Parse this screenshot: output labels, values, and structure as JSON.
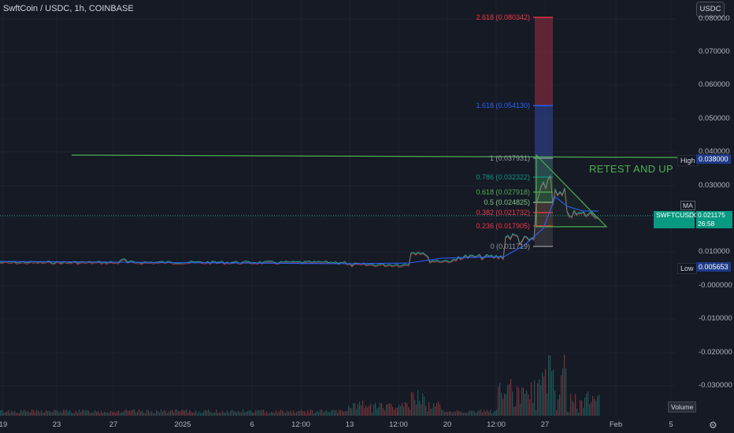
{
  "header": {
    "title": "SwftCoin / USDC, 1h, COINBASE",
    "currency_button": "USDC"
  },
  "y_axis": {
    "ticks": [
      "0.080000",
      "0.070000",
      "0.060000",
      "0.050000",
      "0.040000",
      "0.030000",
      "0.020000",
      "0.010000",
      "-0.000000",
      "-0.010000",
      "-0.020000",
      "-0.030000"
    ]
  },
  "x_axis": {
    "ticks": [
      "19",
      "23",
      "27",
      "2025",
      "6",
      "12:00",
      "13",
      "12:00",
      "20",
      "12:00",
      "27",
      "Feb",
      "5"
    ]
  },
  "fibonacci": [
    {
      "label": "2.618 (0.080342)",
      "color": "#f23645"
    },
    {
      "label": "1.618 (0.054130)",
      "color": "#2962ff"
    },
    {
      "label": "1 (0.037931)",
      "color": "#9598a1"
    },
    {
      "label": "0.786 (0.032322)",
      "color": "#089981"
    },
    {
      "label": "0.618 (0.027918)",
      "color": "#4caf50"
    },
    {
      "label": "0.5 (0.024825)",
      "color": "#81c784"
    },
    {
      "label": "0.382 (0.021732)",
      "color": "#f23645"
    },
    {
      "label": "0.236 (0.017905)",
      "color": "#f23645"
    },
    {
      "label": "0 (0.011719)",
      "color": "#9598a1"
    }
  ],
  "annotation": "RETEST AND UP",
  "tags": {
    "high_label": "High",
    "high_value": "0.038000",
    "low_label": "Low",
    "low_value": "0.005653",
    "ma_label": "MA",
    "symbol": "SWFTCUSDC",
    "price": "0.021175",
    "countdown": "26:58",
    "volume_label": "Volume"
  },
  "colors": {
    "up": "#26a69a",
    "down": "#ef5350",
    "ma": "#2962ff",
    "resistance": "#4caf50"
  }
}
